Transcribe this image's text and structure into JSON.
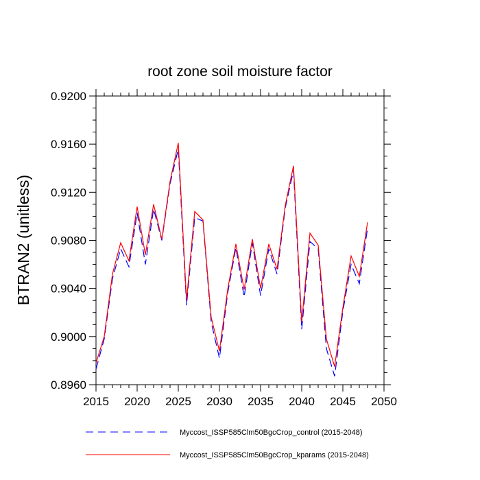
{
  "chart_data": {
    "type": "line",
    "title": "root zone soil moisture factor",
    "xlabel": "",
    "ylabel": "BTRAN2  (unitless)",
    "xlim": [
      2015,
      2050
    ],
    "ylim": [
      0.896,
      0.92
    ],
    "x_ticks": [
      "2015",
      "2020",
      "2025",
      "2030",
      "2035",
      "2040",
      "2045",
      "2050"
    ],
    "y_ticks": [
      "0.8960",
      "0.9000",
      "0.9040",
      "0.9080",
      "0.9120",
      "0.9160",
      "0.9200"
    ],
    "grid": false,
    "legend_position": "bottom",
    "x": [
      2015,
      2016,
      2017,
      2018,
      2019,
      2020,
      2021,
      2022,
      2023,
      2024,
      2025,
      2026,
      2027,
      2028,
      2029,
      2030,
      2031,
      2032,
      2033,
      2034,
      2035,
      2036,
      2037,
      2038,
      2039,
      2040,
      2041,
      2042,
      2043,
      2044,
      2045,
      2046,
      2047,
      2048
    ],
    "series": [
      {
        "name": "Myccost_ISSP585Clm50BgcCrop_control (2015-2048)",
        "color": "#0000ff",
        "style": "dashed",
        "values": [
          0.8973,
          0.8998,
          0.9048,
          0.9073,
          0.9058,
          0.9103,
          0.906,
          0.9106,
          0.908,
          0.9127,
          0.9156,
          0.9026,
          0.9099,
          0.9096,
          0.9012,
          0.8982,
          0.9036,
          0.9074,
          0.9033,
          0.9078,
          0.9034,
          0.9073,
          0.9052,
          0.9107,
          0.9138,
          0.9006,
          0.9079,
          0.9073,
          0.899,
          0.8967,
          0.9021,
          0.906,
          0.9044,
          0.909
        ]
      },
      {
        "name": "Myccost_ISSP585Clm50BgcCrop_kparams (2015-2048)",
        "color": "#ff0000",
        "style": "solid",
        "values": [
          0.8978,
          0.9,
          0.9052,
          0.9078,
          0.9063,
          0.9108,
          0.9068,
          0.911,
          0.9081,
          0.9129,
          0.9161,
          0.903,
          0.9104,
          0.9097,
          0.9016,
          0.8988,
          0.9039,
          0.9077,
          0.9039,
          0.9081,
          0.904,
          0.9077,
          0.9056,
          0.9109,
          0.9142,
          0.9012,
          0.9086,
          0.9076,
          0.8998,
          0.8975,
          0.9024,
          0.9067,
          0.905,
          0.9095
        ]
      }
    ]
  }
}
